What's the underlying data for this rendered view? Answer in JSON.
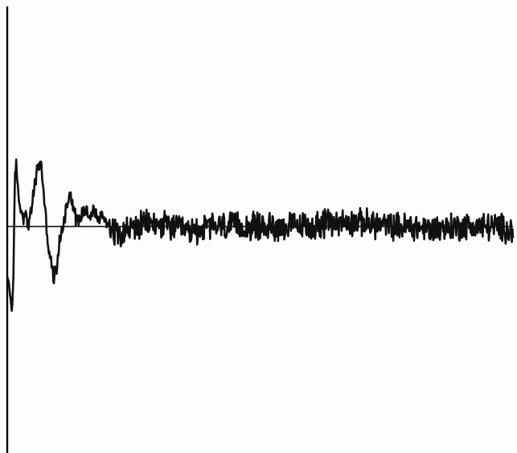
{
  "chart_data": {
    "type": "line",
    "title": "",
    "xlabel": "",
    "ylabel": "",
    "grid": false,
    "legend": "none",
    "xlim": [
      0,
      1
    ],
    "ylim": [
      -1,
      1
    ],
    "baseline": 0,
    "line_color": "#111111",
    "axis_color": "#000000",
    "background": "#fdfdfd",
    "series": [
      {
        "anchors": [
          [
            0.0,
            -0.36
          ],
          [
            0.003,
            -0.38
          ],
          [
            0.006,
            -0.48
          ],
          [
            0.009,
            -0.58
          ],
          [
            0.012,
            -0.4
          ],
          [
            0.015,
            0.3
          ],
          [
            0.018,
            0.45
          ],
          [
            0.022,
            0.2
          ],
          [
            0.026,
            0.14
          ],
          [
            0.03,
            0.06
          ],
          [
            0.035,
            0.1
          ],
          [
            0.04,
            0.02
          ],
          [
            0.045,
            0.04
          ],
          [
            0.05,
            0.18
          ],
          [
            0.056,
            0.32
          ],
          [
            0.062,
            0.44
          ],
          [
            0.068,
            0.4
          ],
          [
            0.073,
            0.2
          ],
          [
            0.077,
            0.02
          ],
          [
            0.082,
            -0.16
          ],
          [
            0.087,
            -0.26
          ],
          [
            0.092,
            -0.36
          ],
          [
            0.097,
            -0.3
          ],
          [
            0.102,
            -0.14
          ],
          [
            0.107,
            -0.05
          ],
          [
            0.112,
            0.05
          ],
          [
            0.118,
            0.14
          ],
          [
            0.123,
            0.25
          ],
          [
            0.128,
            0.19
          ],
          [
            0.134,
            0.08
          ],
          [
            0.14,
            0.03
          ],
          [
            0.148,
            0.09
          ],
          [
            0.156,
            0.13
          ],
          [
            0.164,
            0.07
          ],
          [
            0.172,
            0.11
          ],
          [
            0.18,
            0.05
          ],
          [
            0.19,
            0.07
          ],
          [
            0.2,
            0.02
          ],
          [
            0.215,
            -0.04
          ],
          [
            0.24,
            -0.02
          ],
          [
            0.28,
            0.02
          ],
          [
            0.32,
            0.0
          ],
          [
            0.36,
            -0.04
          ],
          [
            0.4,
            0.0
          ],
          [
            0.44,
            0.0
          ],
          [
            0.48,
            0.0
          ],
          [
            0.52,
            0.0
          ],
          [
            0.56,
            0.0
          ],
          [
            0.6,
            0.0
          ],
          [
            0.64,
            0.03
          ],
          [
            0.68,
            0.03
          ],
          [
            0.72,
            0.02
          ],
          [
            0.76,
            0.0
          ],
          [
            0.8,
            0.0
          ],
          [
            0.84,
            -0.02
          ],
          [
            0.88,
            0.0
          ],
          [
            0.92,
            0.0
          ],
          [
            0.96,
            0.0
          ],
          [
            1.0,
            -0.02
          ]
        ]
      }
    ]
  }
}
